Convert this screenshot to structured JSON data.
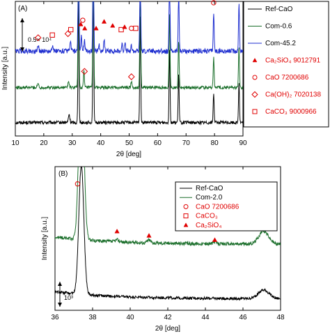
{
  "chart_data": [
    {
      "type": "line",
      "panel_label": "(A)",
      "xlabel": "2θ [deg]",
      "ylabel": "Intensity [a.u.]",
      "xlim": [
        10,
        90
      ],
      "xticks": [
        10,
        20,
        30,
        40,
        50,
        60,
        70,
        80,
        90
      ],
      "scale_bar_label": "0.5× 10⁴",
      "series": [
        {
          "name": "Ref-CaO",
          "color": "#000000",
          "baseline": 0.1,
          "noise": 0.012,
          "peaks": [
            [
              28.9,
              0.06,
              0.5
            ],
            [
              32.2,
              0.9,
              0.35
            ],
            [
              37.4,
              1.0,
              0.35
            ],
            [
              53.9,
              0.8,
              0.35
            ],
            [
              64.2,
              0.55,
              0.35
            ],
            [
              67.4,
              0.35,
              0.35
            ],
            [
              79.7,
              0.22,
              0.35
            ],
            [
              88.6,
              0.3,
              0.35
            ]
          ]
        },
        {
          "name": "Com-0.6",
          "color": "#1a6e2a",
          "baseline": 0.36,
          "noise": 0.012,
          "peaks": [
            [
              18.0,
              0.03,
              0.5
            ],
            [
              28.7,
              0.04,
              0.5
            ],
            [
              32.2,
              1.0,
              0.35
            ],
            [
              34.1,
              0.12,
              0.35
            ],
            [
              37.4,
              1.0,
              0.35
            ],
            [
              50.8,
              0.05,
              0.4
            ],
            [
              53.9,
              0.8,
              0.35
            ],
            [
              64.2,
              0.55,
              0.35
            ],
            [
              67.4,
              0.35,
              0.35
            ],
            [
              79.7,
              0.22,
              0.35
            ],
            [
              88.6,
              0.3,
              0.35
            ]
          ]
        },
        {
          "name": "Com-45.2",
          "color": "#1f2fd0",
          "baseline": 0.63,
          "noise": 0.018,
          "peaks": [
            [
              18.0,
              0.04,
              0.5
            ],
            [
              23.0,
              0.04,
              0.5
            ],
            [
              29.4,
              0.06,
              0.5
            ],
            [
              32.2,
              0.75,
              0.35
            ],
            [
              33.2,
              0.12,
              0.35
            ],
            [
              34.3,
              0.08,
              0.4
            ],
            [
              37.4,
              0.8,
              0.35
            ],
            [
              39.4,
              0.05,
              0.4
            ],
            [
              41.2,
              0.09,
              0.4
            ],
            [
              47.5,
              0.05,
              0.4
            ],
            [
              48.5,
              0.07,
              0.4
            ],
            [
              50.8,
              0.04,
              0.4
            ],
            [
              53.9,
              0.7,
              0.35
            ],
            [
              64.2,
              0.6,
              0.35
            ],
            [
              67.4,
              0.45,
              0.35
            ],
            [
              79.7,
              0.28,
              0.35
            ],
            [
              88.6,
              0.35,
              0.35
            ]
          ]
        }
      ],
      "markers": [
        {
          "x": 18.0,
          "y": 0.73,
          "shape": "diamond"
        },
        {
          "x": 23.0,
          "y": 0.75,
          "shape": "square"
        },
        {
          "x": 28.5,
          "y": 0.76,
          "shape": "diamond"
        },
        {
          "x": 29.5,
          "y": 0.79,
          "shape": "square"
        },
        {
          "x": 32.2,
          "y": 1.08,
          "shape": "circle"
        },
        {
          "x": 33.0,
          "y": 0.83,
          "shape": "triangle"
        },
        {
          "x": 33.7,
          "y": 0.86,
          "shape": "circle"
        },
        {
          "x": 34.4,
          "y": 0.8,
          "shape": "triangle"
        },
        {
          "x": 37.4,
          "y": 1.08,
          "shape": "circle"
        },
        {
          "x": 38.4,
          "y": 0.8,
          "shape": "triangle"
        },
        {
          "x": 41.2,
          "y": 0.85,
          "shape": "triangle"
        },
        {
          "x": 44.2,
          "y": 0.82,
          "shape": "triangle"
        },
        {
          "x": 47.2,
          "y": 0.79,
          "shape": "square"
        },
        {
          "x": 48.4,
          "y": 0.81,
          "shape": "triangle"
        },
        {
          "x": 50.8,
          "y": 0.8,
          "shape": "circle"
        },
        {
          "x": 52.3,
          "y": 0.8,
          "shape": "square"
        },
        {
          "x": 53.9,
          "y": 1.08,
          "shape": "circle"
        },
        {
          "x": 64.2,
          "y": 1.08,
          "shape": "circle"
        },
        {
          "x": 67.4,
          "y": 1.08,
          "shape": "circle"
        },
        {
          "x": 79.7,
          "y": 0.99,
          "shape": "circle"
        },
        {
          "x": 88.6,
          "y": 1.03,
          "shape": "circle"
        },
        {
          "x": 34.3,
          "y": 0.48,
          "shape": "diamond"
        },
        {
          "x": 50.8,
          "y": 0.44,
          "shape": "diamond"
        }
      ],
      "legend": [
        {
          "label": "Ref-CaO",
          "kind": "line",
          "color": "#000000"
        },
        {
          "label": "Com-0.6",
          "kind": "line",
          "color": "#1a6e2a"
        },
        {
          "label": "Com-45.2",
          "kind": "line",
          "color": "#1f2fd0"
        },
        {
          "label": "Ca₂SiO₄ 9012791",
          "kind": "triangle",
          "color": "#e00000"
        },
        {
          "label": "CaO 7200686",
          "kind": "circle",
          "color": "#e00000"
        },
        {
          "label": "Ca(OH)₂ 7020138",
          "kind": "diamond",
          "color": "#e00000"
        },
        {
          "label": "CaCO₃ 9000966",
          "kind": "square",
          "color": "#e00000"
        }
      ],
      "legend_position": "right-outside",
      "grid": false
    },
    {
      "type": "line",
      "panel_label": "(B)",
      "xlabel": "2θ [deg]",
      "ylabel": "Intensity [a.u.]",
      "xlim": [
        36,
        48
      ],
      "xticks": [
        36,
        38,
        40,
        42,
        44,
        46,
        48
      ],
      "scale_bar_label": "10³",
      "series": [
        {
          "name": "Ref-CaO",
          "color": "#000000",
          "baseline": 0.08,
          "noise": 0.01,
          "peaks": [
            [
              37.4,
              0.9,
              0.28
            ],
            [
              47.1,
              0.06,
              0.6
            ]
          ]
        },
        {
          "name": "Com-2.0",
          "color": "#1a6e2a",
          "baseline": 0.46,
          "noise": 0.012,
          "peaks": [
            [
              37.4,
              1.2,
              0.28
            ],
            [
              39.3,
              0.015,
              0.2
            ],
            [
              41.0,
              0.02,
              0.2
            ],
            [
              44.5,
              0.012,
              0.2
            ],
            [
              47.1,
              0.09,
              0.55
            ]
          ]
        }
      ],
      "markers": [
        {
          "x": 37.2,
          "y": 0.88,
          "shape": "circle"
        },
        {
          "x": 39.3,
          "y": 0.55,
          "shape": "triangle"
        },
        {
          "x": 41.0,
          "y": 0.52,
          "shape": "triangle"
        },
        {
          "x": 44.5,
          "y": 0.49,
          "shape": "triangle"
        },
        {
          "x": 47.1,
          "y": 0.68,
          "shape": "square"
        }
      ],
      "legend": [
        {
          "label": "Ref-CaO",
          "kind": "line",
          "color": "#000000"
        },
        {
          "label": "Com-2.0",
          "kind": "line",
          "color": "#1a6e2a"
        },
        {
          "label": "CaO 7200686",
          "kind": "circle",
          "color": "#e00000"
        },
        {
          "label": "CaCO₃",
          "kind": "square",
          "color": "#e00000"
        },
        {
          "label": "Ca₂SiO₄",
          "kind": "triangle",
          "color": "#e00000"
        }
      ],
      "legend_position": "top-right",
      "grid": false
    }
  ]
}
